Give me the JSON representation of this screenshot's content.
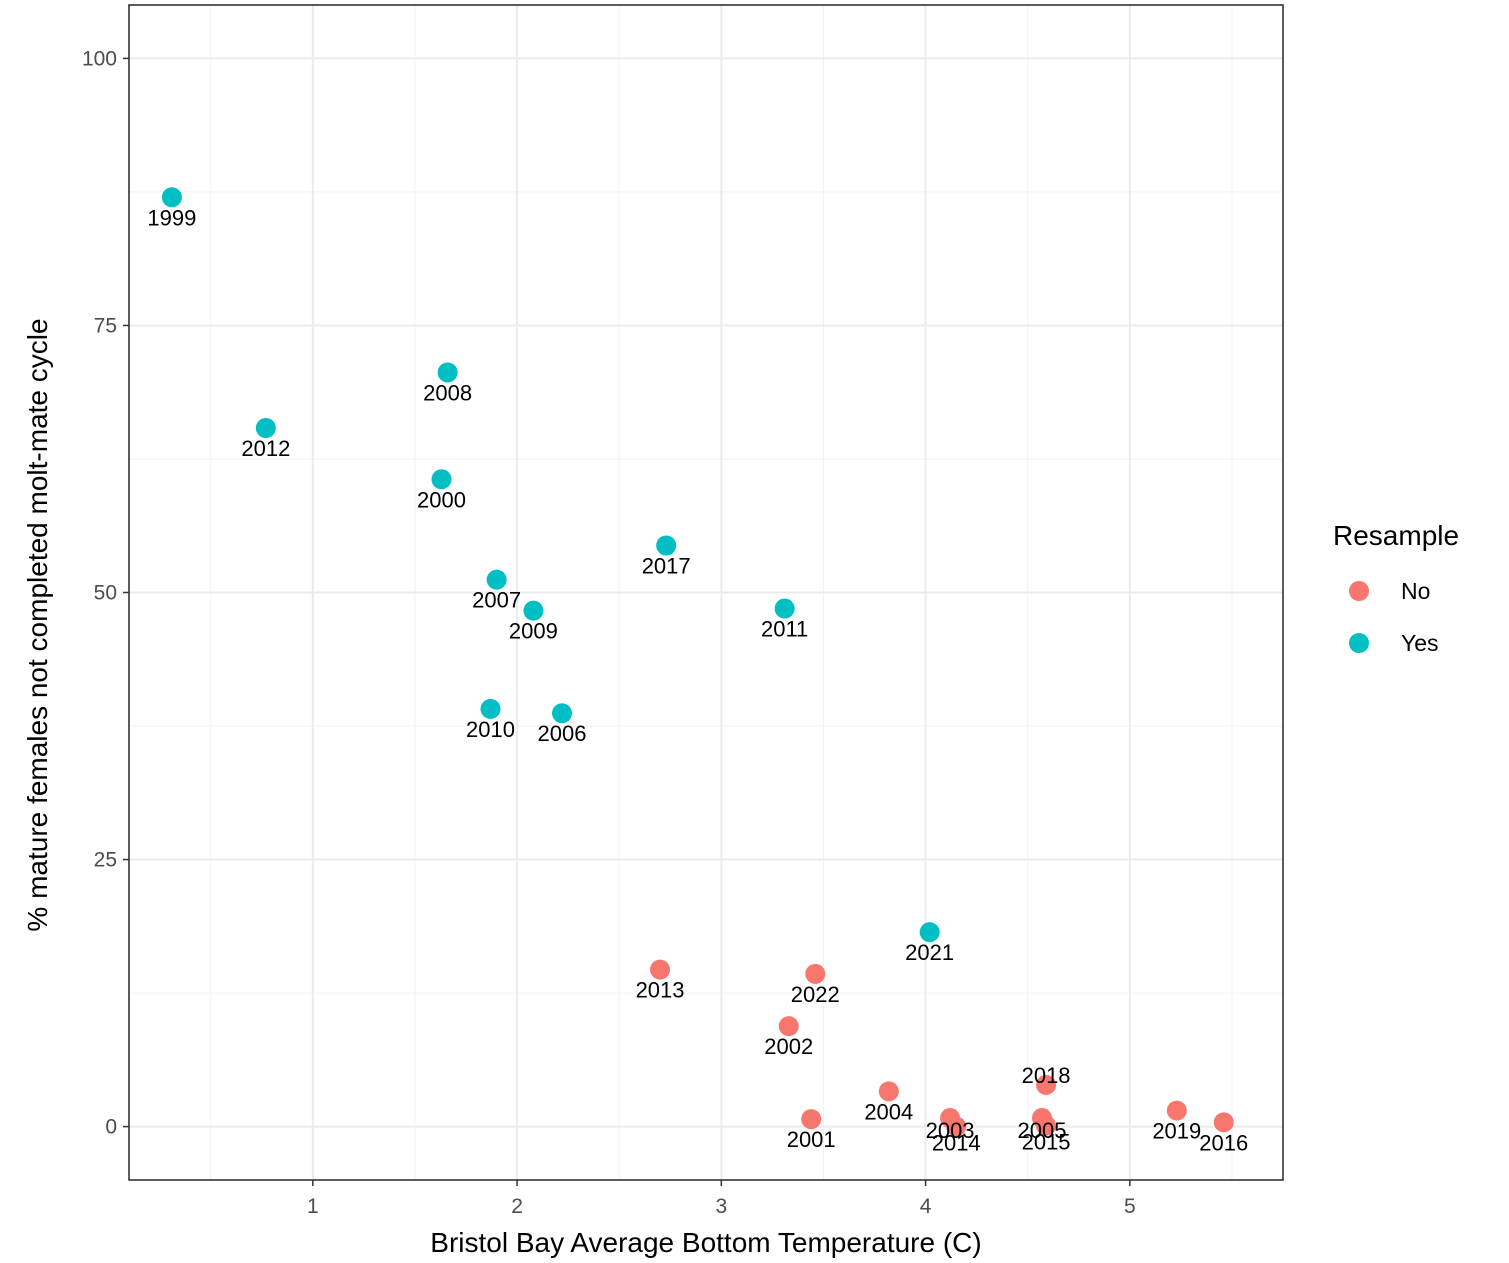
{
  "chart_data": {
    "type": "scatter",
    "xlabel": "Bristol Bay Average Bottom Temperature (C)",
    "ylabel": "% mature females not completed molt-mate cycle",
    "xlim": [
      0.1,
      5.75
    ],
    "ylim": [
      -5,
      105
    ],
    "x_ticks": [
      1,
      2,
      3,
      4,
      5
    ],
    "y_ticks": [
      0,
      25,
      50,
      75,
      100
    ],
    "grid": true,
    "legend": {
      "title": "Resample",
      "position": "right",
      "entries": [
        {
          "label": "No",
          "color": "#F8766D"
        },
        {
          "label": "Yes",
          "color": "#00BFC4"
        }
      ]
    },
    "colors": {
      "No": "#F8766D",
      "Yes": "#00BFC4"
    },
    "points": [
      {
        "year": "1999",
        "x": 0.31,
        "y": 87.0,
        "group": "Yes"
      },
      {
        "year": "2012",
        "x": 0.77,
        "y": 65.4,
        "group": "Yes"
      },
      {
        "year": "2008",
        "x": 1.66,
        "y": 70.6,
        "group": "Yes"
      },
      {
        "year": "2000",
        "x": 1.63,
        "y": 60.6,
        "group": "Yes"
      },
      {
        "year": "2017",
        "x": 2.73,
        "y": 54.4,
        "group": "Yes"
      },
      {
        "year": "2007",
        "x": 1.9,
        "y": 51.2,
        "group": "Yes"
      },
      {
        "year": "2009",
        "x": 2.08,
        "y": 48.3,
        "group": "Yes"
      },
      {
        "year": "2011",
        "x": 3.31,
        "y": 48.5,
        "group": "Yes"
      },
      {
        "year": "2010",
        "x": 1.87,
        "y": 39.1,
        "group": "Yes"
      },
      {
        "year": "2006",
        "x": 2.22,
        "y": 38.7,
        "group": "Yes"
      },
      {
        "year": "2021",
        "x": 4.02,
        "y": 18.2,
        "group": "Yes"
      },
      {
        "year": "2013",
        "x": 2.7,
        "y": 14.7,
        "group": "No"
      },
      {
        "year": "2022",
        "x": 3.46,
        "y": 14.3,
        "group": "No"
      },
      {
        "year": "2002",
        "x": 3.33,
        "y": 9.4,
        "group": "No"
      },
      {
        "year": "2004",
        "x": 3.82,
        "y": 3.3,
        "group": "No"
      },
      {
        "year": "2001",
        "x": 3.44,
        "y": 0.7,
        "group": "No"
      },
      {
        "year": "2003",
        "x": 4.12,
        "y": 0.8,
        "group": "No"
      },
      {
        "year": "2014",
        "x": 4.15,
        "y": 0.0,
        "group": "No"
      },
      {
        "year": "2018",
        "x": 4.59,
        "y": 3.9,
        "group": "No"
      },
      {
        "year": "2005",
        "x": 4.57,
        "y": 0.8,
        "group": "No"
      },
      {
        "year": "2015",
        "x": 4.59,
        "y": 0.1,
        "group": "No"
      },
      {
        "year": "2019",
        "x": 5.23,
        "y": 1.5,
        "group": "No"
      },
      {
        "year": "2016",
        "x": 5.46,
        "y": 0.4,
        "group": "No"
      }
    ]
  }
}
